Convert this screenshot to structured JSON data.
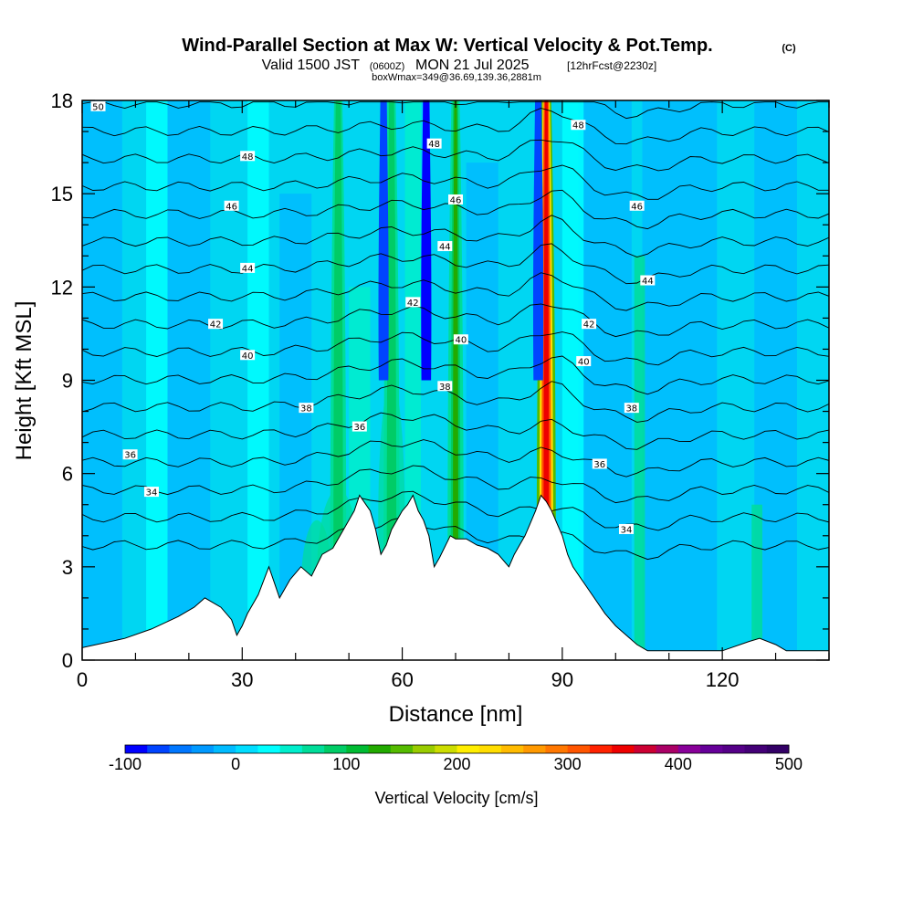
{
  "chart_data": {
    "type": "heatmap",
    "title": "Wind-Parallel Section at Max W: Vertical Velocity & Pot.Temp.",
    "title_mark": "(C)",
    "subtitle": {
      "prefix": "Valid 1500 JST",
      "utc": "(0600Z)",
      "date": "MON 21 Jul 2025",
      "forecast": "[12hrFcst@2230z]"
    },
    "note": "boxWmax=349@36.69,139.36,2881m",
    "xlabel": "Distance [nm]",
    "ylabel": "Height [Kft MSL]",
    "xlim": [
      0,
      140
    ],
    "ylim": [
      0,
      18
    ],
    "x_ticks": [
      "0",
      "30",
      "60",
      "90",
      "120"
    ],
    "y_ticks": [
      "0",
      "3",
      "6",
      "9",
      "12",
      "15",
      "18"
    ],
    "colorbar": {
      "label": "Vertical Velocity [cm/s]",
      "range": [
        -100,
        500
      ],
      "step": 20,
      "tick_labels": [
        "-100",
        "0",
        "100",
        "200",
        "300",
        "400",
        "500"
      ],
      "colors": [
        "#0000ff",
        "#0044ff",
        "#0077ff",
        "#0099ff",
        "#00bbff",
        "#00ddff",
        "#00ffff",
        "#00eecc",
        "#00dd99",
        "#00cc66",
        "#00bb33",
        "#22aa00",
        "#55bb00",
        "#99cc00",
        "#ccdd00",
        "#ffee00",
        "#ffdd00",
        "#ffbb00",
        "#ff9900",
        "#ff7700",
        "#ff5500",
        "#ff2200",
        "#ee0000",
        "#cc0033",
        "#aa0066",
        "#880099",
        "#660099",
        "#550088",
        "#440077",
        "#330066"
      ]
    },
    "theta_contour_levels": [
      50,
      48,
      48,
      46,
      46,
      44,
      44,
      42,
      42,
      40,
      40,
      38,
      38,
      36,
      36,
      34,
      34
    ],
    "theta_labels": [
      {
        "text": "50",
        "x": 3,
        "y": 17.8
      },
      {
        "text": "48",
        "x": 31,
        "y": 16.2
      },
      {
        "text": "46",
        "x": 28,
        "y": 14.6
      },
      {
        "text": "44",
        "x": 31,
        "y": 12.6
      },
      {
        "text": "42",
        "x": 25,
        "y": 10.8
      },
      {
        "text": "40",
        "x": 31,
        "y": 9.8
      },
      {
        "text": "38",
        "x": 42,
        "y": 8.1
      },
      {
        "text": "36",
        "x": 52,
        "y": 7.5
      },
      {
        "text": "36",
        "x": 9,
        "y": 6.6
      },
      {
        "text": "34",
        "x": 13,
        "y": 5.4
      },
      {
        "text": "48",
        "x": 66,
        "y": 16.6
      },
      {
        "text": "46",
        "x": 70,
        "y": 14.8
      },
      {
        "text": "44",
        "x": 68,
        "y": 13.3
      },
      {
        "text": "42",
        "x": 62,
        "y": 11.5
      },
      {
        "text": "40",
        "x": 71,
        "y": 10.3
      },
      {
        "text": "38",
        "x": 68,
        "y": 8.8
      },
      {
        "text": "48",
        "x": 93,
        "y": 17.2
      },
      {
        "text": "46",
        "x": 104,
        "y": 14.6
      },
      {
        "text": "44",
        "x": 106,
        "y": 12.2
      },
      {
        "text": "42",
        "x": 95,
        "y": 10.8
      },
      {
        "text": "40",
        "x": 94,
        "y": 9.6
      },
      {
        "text": "38",
        "x": 103,
        "y": 8.1
      },
      {
        "text": "36",
        "x": 97,
        "y": 6.3
      },
      {
        "text": "34",
        "x": 102,
        "y": 4.2
      }
    ],
    "terrain": {
      "x": [
        0,
        8,
        13,
        18,
        21,
        23,
        26,
        28,
        29,
        30,
        31,
        33,
        35,
        37,
        39,
        41,
        43,
        45,
        47,
        49,
        51,
        52,
        54,
        55,
        56,
        57,
        58,
        60,
        61,
        62,
        63,
        64,
        65,
        66,
        67,
        69,
        70,
        72,
        74,
        76,
        78,
        80,
        81,
        82,
        83,
        84,
        85,
        86,
        87,
        88,
        89,
        90,
        91,
        92,
        94,
        96,
        98,
        100,
        102,
        104,
        106,
        110,
        120,
        125,
        127,
        130,
        132,
        135,
        140
      ],
      "y": [
        0.4,
        0.7,
        1.0,
        1.4,
        1.7,
        2.0,
        1.7,
        1.3,
        0.8,
        1.1,
        1.5,
        2.1,
        3.0,
        2.0,
        2.6,
        3.0,
        2.7,
        3.4,
        3.6,
        4.2,
        4.8,
        5.3,
        4.8,
        4.2,
        3.4,
        3.7,
        4.2,
        4.8,
        5.0,
        5.3,
        4.8,
        4.5,
        4.0,
        3.0,
        3.3,
        4.0,
        3.9,
        3.9,
        3.7,
        3.6,
        3.4,
        3.0,
        3.4,
        3.7,
        4.0,
        4.4,
        4.8,
        5.3,
        5.1,
        4.8,
        4.4,
        4.0,
        3.4,
        3.0,
        2.5,
        2.0,
        1.5,
        1.1,
        0.8,
        0.5,
        0.3,
        0.3,
        0.3,
        0.6,
        0.7,
        0.5,
        0.3,
        0.3,
        0.3
      ]
    },
    "updraft_cores": [
      {
        "x": 87.0,
        "peak_w": 349
      },
      {
        "x": 70.0,
        "peak_w": 130
      },
      {
        "x": 58.0,
        "peak_w": 90
      },
      {
        "x": 48.0,
        "peak_w": 90
      }
    ],
    "downdraft_cores": [
      {
        "x": 64.5,
        "peak_w": -100
      },
      {
        "x": 56.5,
        "peak_w": -70
      },
      {
        "x": 85.5,
        "peak_w": -80
      }
    ]
  }
}
